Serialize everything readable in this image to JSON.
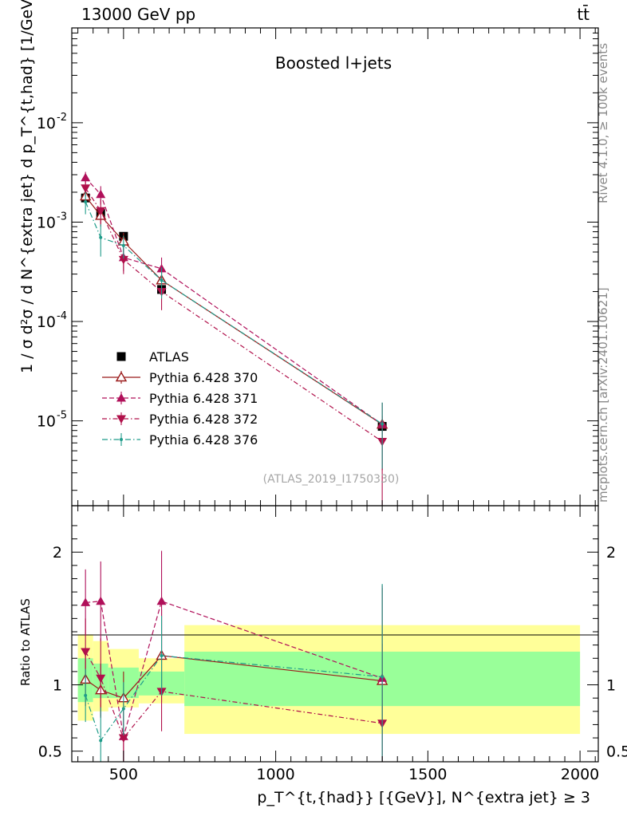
{
  "header": {
    "left": "13000 GeV pp",
    "right": "tt̄"
  },
  "side_labels": {
    "top": "Rivet 4.1.0, ≥ 100k events",
    "bottom": "mcplots.cern.ch [arXiv:2401.10621]"
  },
  "colors": {
    "atlas": "#000000",
    "p370": "#9a1a1a",
    "p371": "#b0105a",
    "p372": "#b0104a",
    "p376": "#1f9c8a",
    "band_inner": "#99ff99",
    "band_outer": "#ffff99"
  },
  "chart_data": [
    {
      "type": "scatter",
      "panel": "main",
      "title": "Boosted l+jets",
      "analysis_label": "(ATLAS_2019_I1750330)",
      "ylabel": "1 / σ d²σ / d N^{extra jet} d p_T^{t,had} [1/GeV]",
      "yscale": "log",
      "xlim": [
        330,
        2060
      ],
      "ylim": [
        1.4e-06,
        0.09
      ],
      "y_ticks": [
        {
          "value": 1e-05,
          "base": "10",
          "exp": "-5"
        },
        {
          "value": 0.0001,
          "base": "10",
          "exp": "-4"
        },
        {
          "value": 0.001,
          "base": "10",
          "exp": "-3"
        },
        {
          "value": 0.01,
          "base": "10",
          "exp": "-2"
        }
      ],
      "legend_position": "middle-left",
      "x": [
        375,
        425,
        500,
        625,
        1350
      ],
      "series": [
        {
          "name": "ATLAS",
          "style": "data",
          "color_key": "atlas",
          "values": [
            0.00175,
            0.00122,
            0.00072,
            0.00021,
            8.8e-06
          ],
          "errors": [
            0.0001,
            0.0001,
            6e-05,
            2e-05,
            1.5e-06
          ]
        },
        {
          "name": "Pythia 6.428 370",
          "style": "open-triangle-up",
          "color_key": "p370",
          "values": [
            0.00182,
            0.00116,
            0.00064,
            0.00026,
            9.2e-06
          ],
          "errors": [
            0.0003,
            0.0002,
            0.00014,
            8e-05,
            6e-06
          ]
        },
        {
          "name": "Pythia 6.428 371",
          "style": "filled-triangle-up",
          "color_key": "p371",
          "values": [
            0.0028,
            0.0019,
            0.00044,
            0.00034,
            9.2e-06
          ],
          "errors": [
            0.0004,
            0.0004,
            0.00012,
            0.0001,
            6e-06
          ]
        },
        {
          "name": "Pythia 6.428 372",
          "style": "filled-triangle-down",
          "color_key": "p372",
          "values": [
            0.0022,
            0.0013,
            0.00042,
            0.0002,
            6.2e-06
          ],
          "errors": [
            0.0004,
            0.0004,
            0.00012,
            7e-05,
            5e-06
          ]
        },
        {
          "name": "Pythia 6.428 376",
          "style": "dot",
          "color_key": "p376",
          "values": [
            0.0016,
            0.0007,
            0.00058,
            0.00026,
            9.3e-06
          ],
          "errors": [
            0.0004,
            0.00025,
            0.00015,
            9e-05,
            6e-06
          ]
        }
      ]
    },
    {
      "type": "scatter",
      "panel": "ratio",
      "ylabel": "Ratio to ATLAS",
      "xlabel": "p_T^{t,{had}} [{GeV}], N^{extra jet} ≥ 3",
      "xlim": [
        330,
        2060
      ],
      "ylim": [
        0.42,
        2.35
      ],
      "x_ticks": [
        {
          "value": 500,
          "label": "500"
        },
        {
          "value": 1000,
          "label": "1000"
        },
        {
          "value": 1500,
          "label": "1500"
        },
        {
          "value": 2000,
          "label": "2000"
        }
      ],
      "y_ticks": [
        {
          "value": 0.5,
          "label": "0.5"
        },
        {
          "value": 1,
          "label": "1"
        },
        {
          "value": 2,
          "label": "2"
        }
      ],
      "bands": [
        {
          "x0": 350,
          "x1": 400,
          "inner": [
            0.87,
            1.2
          ],
          "outer": [
            0.73,
            1.38
          ]
        },
        {
          "x0": 400,
          "x1": 450,
          "inner": [
            0.9,
            1.16
          ],
          "outer": [
            0.8,
            1.33
          ]
        },
        {
          "x0": 450,
          "x1": 550,
          "inner": [
            0.9,
            1.13
          ],
          "outer": [
            0.83,
            1.27
          ]
        },
        {
          "x0": 550,
          "x1": 700,
          "inner": [
            0.92,
            1.1
          ],
          "outer": [
            0.86,
            1.2
          ]
        },
        {
          "x0": 700,
          "x1": 2000,
          "inner": [
            0.84,
            1.25
          ],
          "outer": [
            0.63,
            1.45
          ]
        }
      ],
      "x": [
        375,
        425,
        500,
        625,
        1350
      ],
      "series": [
        {
          "name": "Pythia 6.428 370",
          "style": "open-triangle-up",
          "color_key": "p370",
          "values": [
            1.04,
            0.96,
            0.9,
            1.22,
            1.03
          ],
          "errors": [
            0.2,
            0.2,
            0.2,
            0.35,
            0.7
          ]
        },
        {
          "name": "Pythia 6.428 371",
          "style": "filled-triangle-up",
          "color_key": "p371",
          "values": [
            1.62,
            1.63,
            0.61,
            1.63,
            1.05
          ],
          "errors": [
            0.25,
            0.3,
            0.2,
            0.38,
            0.7
          ]
        },
        {
          "name": "Pythia 6.428 372",
          "style": "filled-triangle-down",
          "color_key": "p372",
          "values": [
            1.25,
            1.05,
            0.6,
            0.95,
            0.71
          ],
          "errors": [
            0.25,
            0.3,
            0.2,
            0.3,
            0.6
          ]
        },
        {
          "name": "Pythia 6.428 376",
          "style": "dot",
          "color_key": "p376",
          "values": [
            0.92,
            0.58,
            0.82,
            1.22,
            1.06
          ],
          "errors": [
            0.2,
            0.25,
            0.2,
            0.3,
            0.7
          ]
        }
      ]
    }
  ]
}
